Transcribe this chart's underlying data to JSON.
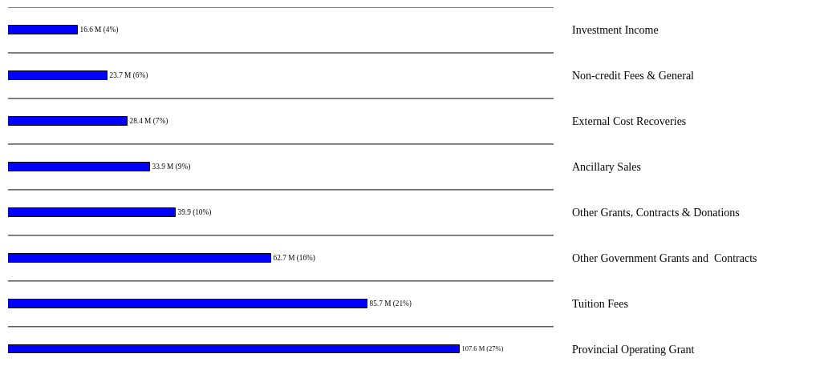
{
  "chart_data": {
    "type": "bar",
    "orientation": "horizontal",
    "categories": [
      "Investment Income",
      "Non-credit Fees & General",
      "External Cost Recoveries",
      "Ancillary Sales",
      "Other Grants, Contracts & Donations",
      "Other Government Grants and  Contracts",
      "Tuition Fees",
      "Provincial Operating Grant"
    ],
    "values": [
      16.6,
      23.7,
      28.4,
      33.9,
      39.9,
      62.7,
      85.7,
      107.6
    ],
    "value_labels": [
      "16.6 M (4%)",
      "23.7 M (6%)",
      "28.4 M (7%)",
      "33.9 M (9%)",
      "39.9 (10%)",
      "62.7 M (16%)",
      "85.7 M (21%)",
      "107.6 M (27%)"
    ],
    "color": "#0000ff",
    "xlim": [
      0,
      130
    ],
    "tick_labels": "y",
    "grid": "y",
    "legend": false
  }
}
